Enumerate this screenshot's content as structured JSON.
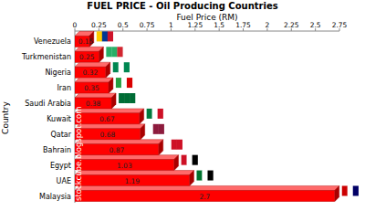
{
  "chart_data": {
    "type": "bar",
    "title": "FUEL PRICE - Oil Producing Countries",
    "x_label": "Fuel Price (RM)",
    "y_label": "Country",
    "annotations": [
      "stockcube.blogspot.com"
    ],
    "orientation": "horizontal",
    "categories": [
      "Venezuela",
      "Turkmenistan",
      "Nigeria",
      "Iran",
      "Saudi Arabia",
      "Kuwait",
      "Qatar",
      "Bahrain",
      "Egypt",
      "UAE",
      "Malaysia"
    ],
    "values": [
      0.15,
      0.25,
      0.32,
      0.35,
      0.38,
      0.67,
      0.68,
      0.87,
      1.03,
      1.19,
      2.7
    ],
    "color": "#ff0000",
    "xlim": [
      0,
      2.75
    ],
    "xticks": [
      0,
      0.25,
      0.5,
      0.75,
      1,
      1.25,
      1.5,
      1.75,
      2,
      2.25,
      2.5,
      2.75
    ],
    "grid": false,
    "data_labels": true
  }
}
